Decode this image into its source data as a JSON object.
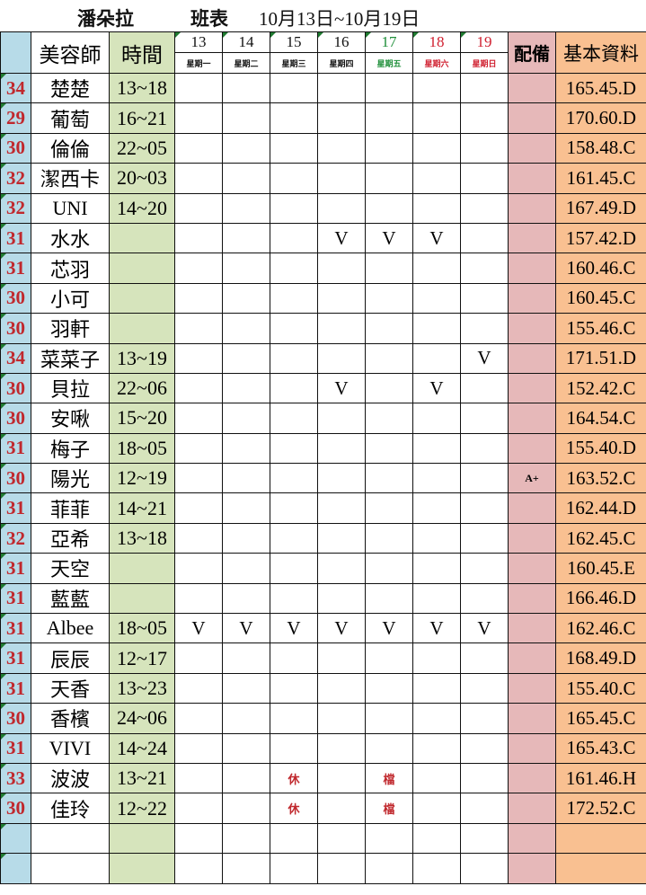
{
  "title": {
    "store": "潘朵拉",
    "label": "班表",
    "range": "10月13日~10月19日"
  },
  "header": {
    "name": "美容師",
    "time": "時間",
    "equip": "配備",
    "info": "基本資料",
    "days": [
      {
        "num": "13",
        "week": "星期一",
        "color": "#111111"
      },
      {
        "num": "14",
        "week": "星期二",
        "color": "#111111"
      },
      {
        "num": "15",
        "week": "星期三",
        "color": "#111111"
      },
      {
        "num": "16",
        "week": "星期四",
        "color": "#111111"
      },
      {
        "num": "17",
        "week": "星期五",
        "color": "#1f8f3a"
      },
      {
        "num": "18",
        "week": "星期六",
        "color": "#d02030"
      },
      {
        "num": "19",
        "week": "星期日",
        "color": "#d02030"
      }
    ]
  },
  "colors": {
    "age_bg": "#b7dbe8",
    "time_bg": "#d6e4bc",
    "equip_bg": "#e6b8b9",
    "info_bg": "#f9c091",
    "accent_red": "#c0282d"
  },
  "rows": [
    {
      "age": "34",
      "name": "楚楚",
      "time": "13~18",
      "days": [
        "",
        "",
        "",
        "",
        "",
        "",
        ""
      ],
      "equip": "",
      "info": "165.45.D"
    },
    {
      "age": "29",
      "name": "葡萄",
      "time": "16~21",
      "days": [
        "",
        "",
        "",
        "",
        "",
        "",
        ""
      ],
      "equip": "",
      "info": "170.60.D"
    },
    {
      "age": "30",
      "name": "倫倫",
      "time": "22~05",
      "days": [
        "",
        "",
        "",
        "",
        "",
        "",
        ""
      ],
      "equip": "",
      "info": "158.48.C"
    },
    {
      "age": "32",
      "name": "潔西卡",
      "time": "20~03",
      "days": [
        "",
        "",
        "",
        "",
        "",
        "",
        ""
      ],
      "equip": "",
      "info": "161.45.C"
    },
    {
      "age": "32",
      "name": "UNI",
      "time": "14~20",
      "days": [
        "",
        "",
        "",
        "",
        "",
        "",
        ""
      ],
      "equip": "",
      "info": "167.49.D"
    },
    {
      "age": "31",
      "name": "水水",
      "time": "",
      "days": [
        "",
        "",
        "",
        "V",
        "V",
        "V",
        ""
      ],
      "equip": "",
      "info": "157.42.D"
    },
    {
      "age": "31",
      "name": "芯羽",
      "time": "",
      "days": [
        "",
        "",
        "",
        "",
        "",
        "",
        ""
      ],
      "equip": "",
      "info": "160.46.C"
    },
    {
      "age": "30",
      "name": "小可",
      "time": "",
      "days": [
        "",
        "",
        "",
        "",
        "",
        "",
        ""
      ],
      "equip": "",
      "info": "160.45.C"
    },
    {
      "age": "30",
      "name": "羽軒",
      "time": "",
      "days": [
        "",
        "",
        "",
        "",
        "",
        "",
        ""
      ],
      "equip": "",
      "info": "155.46.C"
    },
    {
      "age": "34",
      "name": "菜菜子",
      "time": "13~19",
      "days": [
        "",
        "",
        "",
        "",
        "",
        "",
        "V"
      ],
      "equip": "",
      "info": "171.51.D"
    },
    {
      "age": "30",
      "name": "貝拉",
      "time": "22~06",
      "days": [
        "",
        "",
        "",
        "V",
        "",
        "V",
        ""
      ],
      "equip": "",
      "info": "152.42.C"
    },
    {
      "age": "30",
      "name": "安啾",
      "time": "15~20",
      "days": [
        "",
        "",
        "",
        "",
        "",
        "",
        ""
      ],
      "equip": "",
      "info": "164.54.C"
    },
    {
      "age": "31",
      "name": "梅子",
      "time": "18~05",
      "days": [
        "",
        "",
        "",
        "",
        "",
        "",
        ""
      ],
      "equip": "",
      "info": "155.40.D"
    },
    {
      "age": "30",
      "name": "陽光",
      "time": "12~19",
      "days": [
        "",
        "",
        "",
        "",
        "",
        "",
        ""
      ],
      "equip": "A+",
      "info": "163.52.C"
    },
    {
      "age": "31",
      "name": "菲菲",
      "time": "14~21",
      "days": [
        "",
        "",
        "",
        "",
        "",
        "",
        ""
      ],
      "equip": "",
      "info": "162.44.D"
    },
    {
      "age": "32",
      "name": "亞希",
      "time": "13~18",
      "days": [
        "",
        "",
        "",
        "",
        "",
        "",
        ""
      ],
      "equip": "",
      "info": "162.45.C"
    },
    {
      "age": "31",
      "name": "天空",
      "time": "",
      "days": [
        "",
        "",
        "",
        "",
        "",
        "",
        ""
      ],
      "equip": "",
      "info": "160.45.E"
    },
    {
      "age": "31",
      "name": "藍藍",
      "time": "",
      "days": [
        "",
        "",
        "",
        "",
        "",
        "",
        ""
      ],
      "equip": "",
      "info": "166.46.D"
    },
    {
      "age": "31",
      "name": "Albee",
      "time": "18~05",
      "days": [
        "V",
        "V",
        "V",
        "V",
        "V",
        "V",
        "V"
      ],
      "equip": "",
      "info": "162.46.C"
    },
    {
      "age": "31",
      "name": "辰辰",
      "time": "12~17",
      "days": [
        "",
        "",
        "",
        "",
        "",
        "",
        ""
      ],
      "equip": "",
      "info": "168.49.D"
    },
    {
      "age": "31",
      "name": "天香",
      "time": "13~23",
      "days": [
        "",
        "",
        "",
        "",
        "",
        "",
        ""
      ],
      "equip": "",
      "info": "155.40.C"
    },
    {
      "age": "30",
      "name": "香檳",
      "time": "24~06",
      "days": [
        "",
        "",
        "",
        "",
        "",
        "",
        ""
      ],
      "equip": "",
      "info": "165.45.C"
    },
    {
      "age": "31",
      "name": "VIVI",
      "time": "14~24",
      "days": [
        "",
        "",
        "",
        "",
        "",
        "",
        ""
      ],
      "equip": "",
      "info": "165.43.C"
    },
    {
      "age": "33",
      "name": "波波",
      "time": "13~21",
      "days": [
        "",
        "",
        "休",
        "",
        "檔",
        "",
        ""
      ],
      "equip": "",
      "info": "161.46.H"
    },
    {
      "age": "30",
      "name": "佳玲",
      "time": "12~22",
      "days": [
        "",
        "",
        "休",
        "",
        "檔",
        "",
        ""
      ],
      "equip": "",
      "info": "172.52.C"
    },
    {
      "age": "",
      "name": "",
      "time": "",
      "days": [
        "",
        "",
        "",
        "",
        "",
        "",
        ""
      ],
      "equip": "",
      "info": ""
    },
    {
      "age": "",
      "name": "",
      "time": "",
      "days": [
        "",
        "",
        "",
        "",
        "",
        "",
        ""
      ],
      "equip": "",
      "info": ""
    }
  ]
}
